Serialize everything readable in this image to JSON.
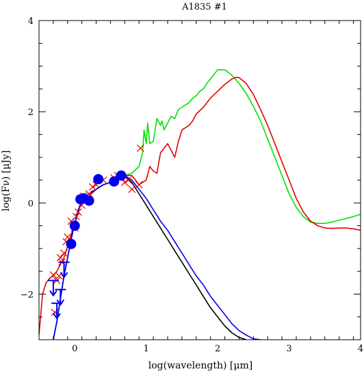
{
  "chart_data": {
    "type": "scatter",
    "title": "A1835 #1",
    "xlabel": "log(wavelength) [μm]",
    "ylabel": "log(Fν) [μJy]",
    "xlim": [
      -0.5,
      4
    ],
    "ylim": [
      -3,
      4
    ],
    "x_ticks": [
      {
        "value": 0,
        "label": "0"
      },
      {
        "value": 1,
        "label": "1"
      },
      {
        "value": 2,
        "label": "2"
      },
      {
        "value": 3,
        "label": "3"
      },
      {
        "value": 4,
        "label": "4"
      }
    ],
    "y_ticks": [
      {
        "value": -2,
        "label": "−2"
      },
      {
        "value": 0,
        "label": "0"
      },
      {
        "value": 2,
        "label": "2"
      },
      {
        "value": 4,
        "label": "4"
      }
    ],
    "grid": false,
    "legend": "none",
    "series": [
      {
        "kind": "line",
        "color": "#00e000",
        "x": [
          -0.3,
          -0.25,
          -0.2,
          -0.15,
          -0.1,
          -0.05,
          0,
          0.05,
          0.1,
          0.15,
          0.2,
          0.3,
          0.4,
          0.5,
          0.6,
          0.7,
          0.8,
          0.9,
          0.95,
          0.97,
          1.0,
          1.02,
          1.05,
          1.1,
          1.15,
          1.2,
          1.22,
          1.25,
          1.3,
          1.35,
          1.4,
          1.45,
          1.5,
          1.55,
          1.6,
          1.65,
          1.7,
          1.75,
          1.8,
          1.85,
          1.9,
          2.0,
          2.1,
          2.2,
          2.3,
          2.4,
          2.5,
          2.6,
          2.7,
          2.8,
          2.9,
          3.0,
          3.1,
          3.2,
          3.3,
          3.4,
          3.5,
          3.6,
          3.7,
          3.8,
          3.9,
          4.0
        ],
        "y": [
          -3.0,
          -2.6,
          -2.1,
          -1.6,
          -1.2,
          -0.8,
          -0.45,
          -0.15,
          0.05,
          0.15,
          0.2,
          0.3,
          0.4,
          0.45,
          0.55,
          0.6,
          0.65,
          0.8,
          1.1,
          1.6,
          1.3,
          1.75,
          1.3,
          1.35,
          1.85,
          1.7,
          1.8,
          1.6,
          1.75,
          1.9,
          1.85,
          2.05,
          2.1,
          2.15,
          2.2,
          2.3,
          2.35,
          2.45,
          2.5,
          2.62,
          2.72,
          2.92,
          2.92,
          2.8,
          2.62,
          2.4,
          2.12,
          1.8,
          1.4,
          1.0,
          0.6,
          0.2,
          -0.1,
          -0.3,
          -0.42,
          -0.45,
          -0.45,
          -0.42,
          -0.38,
          -0.34,
          -0.3,
          -0.25
        ]
      },
      {
        "kind": "line",
        "color": "#e00000",
        "x": [
          -0.5,
          -0.45,
          -0.4,
          -0.35,
          -0.3,
          -0.25,
          -0.2,
          -0.15,
          -0.1,
          -0.05,
          0,
          0.05,
          0.1,
          0.2,
          0.3,
          0.4,
          0.5,
          0.6,
          0.7,
          0.8,
          0.9,
          1.0,
          1.05,
          1.1,
          1.15,
          1.2,
          1.3,
          1.4,
          1.45,
          1.5,
          1.55,
          1.6,
          1.65,
          1.7,
          1.8,
          1.9,
          2.0,
          2.1,
          2.2,
          2.25,
          2.3,
          2.4,
          2.5,
          2.6,
          2.7,
          2.8,
          2.9,
          3.0,
          3.1,
          3.2,
          3.3,
          3.4,
          3.5,
          3.6,
          3.7,
          3.8,
          3.9,
          4.0
        ],
        "y": [
          -2.9,
          -2.0,
          -1.75,
          -1.65,
          -1.6,
          -1.5,
          -1.35,
          -1.2,
          -0.95,
          -0.7,
          -0.45,
          -0.2,
          0.05,
          0.15,
          0.3,
          0.4,
          0.45,
          0.55,
          0.6,
          0.6,
          0.4,
          0.5,
          0.8,
          0.7,
          0.65,
          1.1,
          1.3,
          1.0,
          1.35,
          1.6,
          1.65,
          1.7,
          1.8,
          1.95,
          2.1,
          2.3,
          2.45,
          2.6,
          2.72,
          2.75,
          2.75,
          2.62,
          2.38,
          2.05,
          1.7,
          1.3,
          0.9,
          0.5,
          0.1,
          -0.2,
          -0.4,
          -0.5,
          -0.55,
          -0.56,
          -0.55,
          -0.55,
          -0.57,
          -0.6
        ]
      },
      {
        "kind": "line",
        "color": "#000000",
        "x": [
          -0.3,
          -0.25,
          -0.2,
          -0.15,
          -0.1,
          -0.05,
          0,
          0.05,
          0.1,
          0.15,
          0.2,
          0.3,
          0.4,
          0.5,
          0.6,
          0.7,
          0.8,
          0.9,
          1.0,
          1.1,
          1.2,
          1.3,
          1.4,
          1.5,
          1.6,
          1.7,
          1.8,
          1.9,
          2.0,
          2.1,
          2.2,
          2.3,
          2.4
        ],
        "y": [
          -3.0,
          -2.6,
          -2.1,
          -1.6,
          -1.2,
          -0.8,
          -0.45,
          -0.15,
          0.05,
          0.15,
          0.2,
          0.3,
          0.4,
          0.45,
          0.55,
          0.6,
          0.45,
          0.2,
          -0.05,
          -0.3,
          -0.55,
          -0.8,
          -1.05,
          -1.3,
          -1.55,
          -1.8,
          -2.05,
          -2.3,
          -2.5,
          -2.7,
          -2.85,
          -2.95,
          -3.0
        ]
      },
      {
        "kind": "line",
        "color": "#0000ee",
        "x": [
          -0.3,
          -0.25,
          -0.2,
          -0.15,
          -0.1,
          -0.05,
          0,
          0.05,
          0.1,
          0.15,
          0.2,
          0.3,
          0.4,
          0.5,
          0.6,
          0.7,
          0.8,
          0.9,
          1.0,
          1.1,
          1.2,
          1.3,
          1.4,
          1.5,
          1.6,
          1.7,
          1.8,
          1.9,
          2.0,
          2.1,
          2.2,
          2.3,
          2.4,
          2.5,
          2.6
        ],
        "y": [
          -3.0,
          -2.6,
          -2.1,
          -1.6,
          -1.2,
          -0.8,
          -0.45,
          -0.15,
          0.05,
          0.15,
          0.2,
          0.3,
          0.4,
          0.45,
          0.55,
          0.6,
          0.5,
          0.3,
          0.1,
          -0.15,
          -0.4,
          -0.6,
          -0.85,
          -1.1,
          -1.35,
          -1.6,
          -1.8,
          -2.05,
          -2.25,
          -2.45,
          -2.65,
          -2.8,
          -2.9,
          -2.98,
          -3.0
        ]
      },
      {
        "kind": "points",
        "marker": "x",
        "color": "#e00000",
        "x": [
          -0.3,
          -0.28,
          -0.25,
          -0.22,
          -0.2,
          -0.18,
          -0.15,
          -0.12,
          -0.1,
          -0.05,
          0,
          0.02,
          0.05,
          0.1,
          0.12,
          0.2,
          0.25,
          0.3,
          0.4,
          0.55,
          0.6,
          0.65,
          0.7,
          0.75,
          0.8,
          0.9,
          0.92
        ],
        "y": [
          -1.58,
          -2.4,
          -1.7,
          -1.6,
          -1.2,
          -1.3,
          -1.1,
          -0.85,
          -0.75,
          -0.4,
          -0.55,
          -0.3,
          -0.2,
          -0.05,
          0.15,
          0.2,
          0.35,
          0.4,
          0.5,
          0.55,
          0.6,
          0.55,
          0.45,
          0.5,
          0.3,
          0.4,
          1.2
        ]
      },
      {
        "kind": "points",
        "marker": "circle",
        "color": "#0000ee",
        "x": [
          -0.05,
          0,
          0.08,
          0.12,
          0.2,
          0.33,
          0.55,
          0.65
        ],
        "y": [
          -0.9,
          -0.5,
          0.08,
          0.1,
          0.05,
          0.52,
          0.47,
          0.6
        ]
      },
      {
        "kind": "upper_limits",
        "color": "#0000ee",
        "x": [
          -0.3,
          -0.25,
          -0.2,
          -0.15
        ],
        "y": [
          -1.7,
          -2.2,
          -1.9,
          -1.3
        ]
      }
    ]
  }
}
